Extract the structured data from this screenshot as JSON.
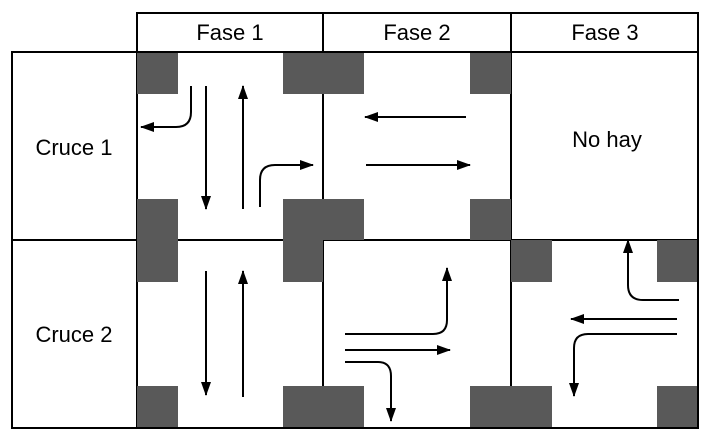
{
  "table": {
    "headers": [
      "Fase 1",
      "Fase 2",
      "Fase 3"
    ],
    "rows": [
      {
        "label": "Cruce 1",
        "phases": [
          "",
          "",
          "No hay"
        ]
      },
      {
        "label": "Cruce 2",
        "phases": [
          "",
          "",
          ""
        ]
      }
    ]
  },
  "colors": {
    "corner_block": "#595959",
    "lines": "#000000",
    "background": "#ffffff"
  }
}
